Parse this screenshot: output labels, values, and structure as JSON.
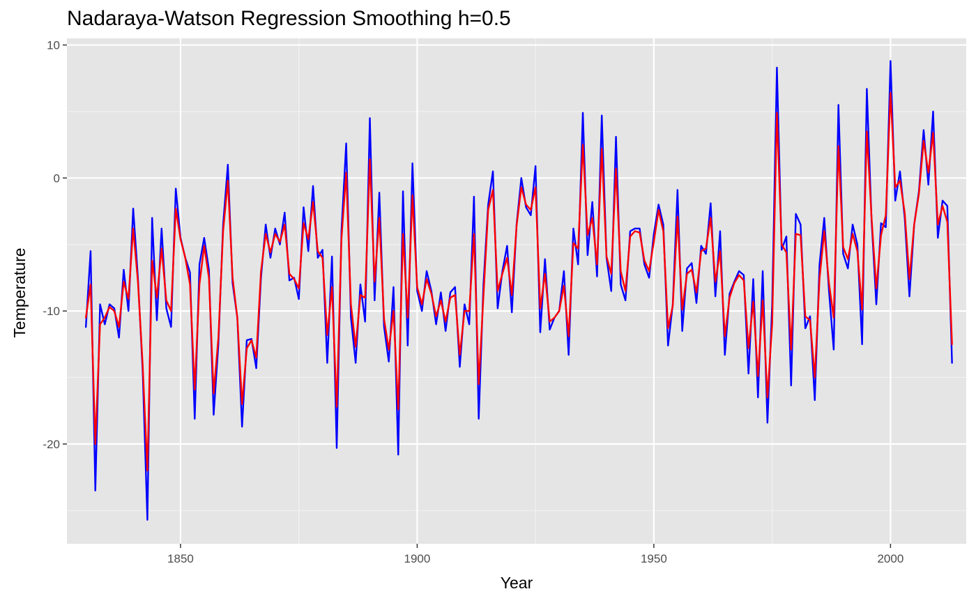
{
  "chart_data": {
    "type": "line",
    "title": "Nadaraya-Watson Regression Smoothing h=0.5",
    "xlabel": "Year",
    "ylabel": "Temperature",
    "xlim": [
      1826,
      2016
    ],
    "ylim": [
      -27.5,
      10.5
    ],
    "x_ticks": [
      1850,
      1900,
      1950,
      2000
    ],
    "y_ticks": [
      10,
      0,
      -10,
      -20
    ],
    "x_tick_labels": [
      "1850",
      "1900",
      "1950",
      "2000"
    ],
    "y_tick_labels": [
      "10",
      "0",
      "-10",
      "-20"
    ],
    "grid": true,
    "legend": "none",
    "background": "#e5e5e5",
    "series": [
      {
        "color": "#0000ff",
        "x": [
          1830,
          1831,
          1832,
          1833,
          1834,
          1835,
          1836,
          1837,
          1838,
          1839,
          1840,
          1841,
          1842,
          1843,
          1844,
          1845,
          1846,
          1847,
          1848,
          1849,
          1850,
          1851,
          1852,
          1853,
          1854,
          1855,
          1856,
          1857,
          1858,
          1859,
          1860,
          1861,
          1862,
          1863,
          1864,
          1865,
          1866,
          1867,
          1868,
          1869,
          1870,
          1871,
          1872,
          1873,
          1874,
          1875,
          1876,
          1877,
          1878,
          1879,
          1880,
          1881,
          1882,
          1883,
          1884,
          1885,
          1886,
          1887,
          1888,
          1889,
          1890,
          1891,
          1892,
          1893,
          1894,
          1895,
          1896,
          1897,
          1898,
          1899,
          1900,
          1901,
          1902,
          1903,
          1904,
          1905,
          1906,
          1907,
          1908,
          1909,
          1910,
          1911,
          1912,
          1913,
          1914,
          1915,
          1916,
          1917,
          1918,
          1919,
          1920,
          1921,
          1922,
          1923,
          1924,
          1925,
          1926,
          1927,
          1928,
          1929,
          1930,
          1931,
          1932,
          1933,
          1934,
          1935,
          1936,
          1937,
          1938,
          1939,
          1940,
          1941,
          1942,
          1943,
          1944,
          1945,
          1946,
          1947,
          1948,
          1949,
          1950,
          1951,
          1952,
          1953,
          1954,
          1955,
          1956,
          1957,
          1958,
          1959,
          1960,
          1961,
          1962,
          1963,
          1964,
          1965,
          1966,
          1967,
          1968,
          1969,
          1970,
          1971,
          1972,
          1973,
          1974,
          1975,
          1976,
          1977,
          1978,
          1979,
          1980,
          1981,
          1982,
          1983,
          1984,
          1985,
          1986,
          1987,
          1988,
          1989,
          1990,
          1991,
          1992,
          1993,
          1994,
          1995,
          1996,
          1997,
          1998,
          1999,
          2000,
          2001,
          2002,
          2003,
          2004,
          2005,
          2006,
          2007,
          2008,
          2009,
          2010,
          2011,
          2012,
          2013
        ],
        "y": [
          -11.2,
          -5.5,
          -23.5,
          -9.5,
          -11.0,
          -9.5,
          -9.8,
          -12.0,
          -6.9,
          -10.0,
          -2.3,
          -7.5,
          -14.5,
          -25.7,
          -3.0,
          -10.7,
          -3.8,
          -9.8,
          -11.2,
          -0.8,
          -4.5,
          -6.0,
          -7.1,
          -18.1,
          -6.5,
          -4.5,
          -6.9,
          -17.8,
          -12.5,
          -3.5,
          1.0,
          -7.9,
          -10.5,
          -18.7,
          -12.2,
          -12.1,
          -14.3,
          -7.5,
          -3.5,
          -6.0,
          -3.8,
          -5.0,
          -2.6,
          -7.7,
          -7.5,
          -9.1,
          -2.2,
          -5.5,
          -0.6,
          -6.0,
          -5.4,
          -13.9,
          -5.9,
          -20.3,
          -4.0,
          2.6,
          -10.5,
          -13.9,
          -8.0,
          -10.8,
          4.5,
          -9.2,
          -1.1,
          -11.2,
          -13.8,
          -8.2,
          -20.8,
          -1.0,
          -12.6,
          1.1,
          -8.5,
          -10.0,
          -7.0,
          -8.5,
          -11.0,
          -8.6,
          -11.5,
          -8.6,
          -8.2,
          -14.2,
          -9.5,
          -11.0,
          -1.4,
          -18.1,
          -8.0,
          -2.0,
          0.5,
          -9.8,
          -7.0,
          -5.1,
          -10.1,
          -3.5,
          0.0,
          -2.2,
          -2.8,
          0.9,
          -11.6,
          -6.1,
          -11.4,
          -10.5,
          -10.0,
          -7.0,
          -13.3,
          -3.8,
          -6.5,
          4.9,
          -5.8,
          -1.8,
          -7.4,
          4.7,
          -6.0,
          -8.5,
          3.1,
          -8.0,
          -9.2,
          -4.0,
          -3.8,
          -3.8,
          -6.5,
          -7.5,
          -4.2,
          -2.0,
          -3.5,
          -12.6,
          -9.5,
          -0.9,
          -11.5,
          -6.8,
          -6.4,
          -9.4,
          -5.1,
          -5.7,
          -1.9,
          -8.9,
          -4.0,
          -13.3,
          -8.7,
          -7.8,
          -7.0,
          -7.3,
          -14.7,
          -7.6,
          -16.5,
          -7.0,
          -18.4,
          -9.5,
          8.3,
          -5.4,
          -4.4,
          -15.6,
          -2.7,
          -3.5,
          -11.3,
          -10.4,
          -16.7,
          -6.5,
          -3.0,
          -8.5,
          -12.9,
          5.5,
          -5.7,
          -6.8,
          -3.5,
          -5.0,
          -12.5,
          6.7,
          -3.2,
          -9.5,
          -3.4,
          -3.7,
          8.8,
          -1.7,
          0.5,
          -3.0,
          -8.9,
          -3.5,
          -1.0,
          3.6,
          -0.5,
          5.0,
          -4.5,
          -1.7,
          -2.1,
          -13.9
        ]
      },
      {
        "color": "#ff0000",
        "x": [
          1830,
          1831,
          1832,
          1833,
          1834,
          1835,
          1836,
          1837,
          1838,
          1839,
          1840,
          1841,
          1842,
          1843,
          1844,
          1845,
          1846,
          1847,
          1848,
          1849,
          1850,
          1851,
          1852,
          1853,
          1854,
          1855,
          1856,
          1857,
          1858,
          1859,
          1860,
          1861,
          1862,
          1863,
          1864,
          1865,
          1866,
          1867,
          1868,
          1869,
          1870,
          1871,
          1872,
          1873,
          1874,
          1875,
          1876,
          1877,
          1878,
          1879,
          1880,
          1881,
          1882,
          1883,
          1884,
          1885,
          1886,
          1887,
          1888,
          1889,
          1890,
          1891,
          1892,
          1893,
          1894,
          1895,
          1896,
          1897,
          1898,
          1899,
          1900,
          1901,
          1902,
          1903,
          1904,
          1905,
          1906,
          1907,
          1908,
          1909,
          1910,
          1911,
          1912,
          1913,
          1914,
          1915,
          1916,
          1917,
          1918,
          1919,
          1920,
          1921,
          1922,
          1923,
          1924,
          1925,
          1926,
          1927,
          1928,
          1929,
          1930,
          1931,
          1932,
          1933,
          1934,
          1935,
          1936,
          1937,
          1938,
          1939,
          1940,
          1941,
          1942,
          1943,
          1944,
          1945,
          1946,
          1947,
          1948,
          1949,
          1950,
          1951,
          1952,
          1953,
          1954,
          1955,
          1956,
          1957,
          1958,
          1959,
          1960,
          1961,
          1962,
          1963,
          1964,
          1965,
          1966,
          1967,
          1968,
          1969,
          1970,
          1971,
          1972,
          1973,
          1974,
          1975,
          1976,
          1977,
          1978,
          1979,
          1980,
          1981,
          1982,
          1983,
          1984,
          1985,
          1986,
          1987,
          1988,
          1989,
          1990,
          1991,
          1992,
          1993,
          1994,
          1995,
          1996,
          1997,
          1998,
          1999,
          2000,
          2001,
          2002,
          2003,
          2004,
          2005,
          2006,
          2007,
          2008,
          2009,
          2010,
          2011,
          2012,
          2013
        ],
        "y": [
          -10.5,
          -8.0,
          -20.0,
          -11.0,
          -10.5,
          -9.7,
          -10.0,
          -11.2,
          -7.8,
          -9.1,
          -3.8,
          -7.8,
          -14.0,
          -22.0,
          -6.2,
          -9.0,
          -5.3,
          -9.2,
          -10.0,
          -2.3,
          -4.6,
          -6.0,
          -8.0,
          -15.9,
          -8.0,
          -5.1,
          -7.5,
          -16.2,
          -12.0,
          -4.0,
          -0.2,
          -7.5,
          -10.5,
          -17.0,
          -12.8,
          -12.2,
          -13.5,
          -7.0,
          -4.2,
          -5.6,
          -4.2,
          -4.8,
          -3.5,
          -7.2,
          -7.6,
          -8.3,
          -3.4,
          -4.6,
          -1.8,
          -5.5,
          -6.0,
          -11.8,
          -8.2,
          -17.2,
          -4.6,
          0.4,
          -9.5,
          -12.7,
          -8.8,
          -9.0,
          1.4,
          -7.8,
          -3.0,
          -10.6,
          -12.9,
          -10.0,
          -17.4,
          -4.2,
          -10.5,
          -1.3,
          -8.2,
          -9.5,
          -7.6,
          -8.7,
          -10.4,
          -9.2,
          -10.8,
          -9.0,
          -8.8,
          -13.3,
          -10.0,
          -10.0,
          -4.2,
          -15.5,
          -8.9,
          -2.4,
          -0.9,
          -8.5,
          -7.2,
          -6.0,
          -8.8,
          -3.6,
          -0.7,
          -2.0,
          -2.4,
          -0.7,
          -9.8,
          -7.2,
          -10.8,
          -10.5,
          -10.0,
          -8.1,
          -11.9,
          -4.9,
          -5.3,
          2.5,
          -4.3,
          -3.0,
          -6.5,
          2.2,
          -5.9,
          -7.2,
          0.7,
          -7.0,
          -8.5,
          -4.4,
          -4.0,
          -4.1,
          -6.2,
          -7.0,
          -4.8,
          -2.4,
          -4.0,
          -11.3,
          -9.6,
          -2.9,
          -9.9,
          -7.2,
          -6.9,
          -8.6,
          -5.5,
          -5.3,
          -3.0,
          -7.8,
          -5.5,
          -11.9,
          -9.0,
          -7.9,
          -7.3,
          -7.7,
          -12.8,
          -9.3,
          -14.9,
          -9.2,
          -16.5,
          -11.0,
          4.9,
          -5.0,
          -5.6,
          -12.9,
          -4.2,
          -4.3,
          -10.4,
          -10.7,
          -15.0,
          -7.6,
          -4.0,
          -7.9,
          -10.5,
          2.4,
          -5.2,
          -6.1,
          -4.2,
          -5.5,
          -9.9,
          3.5,
          -3.0,
          -8.3,
          -4.3,
          -2.8,
          6.4,
          -0.7,
          -0.2,
          -2.6,
          -7.6,
          -3.5,
          -1.2,
          2.8,
          0.4,
          3.4,
          -3.5,
          -2.1,
          -3.3,
          -12.5
        ]
      }
    ]
  }
}
